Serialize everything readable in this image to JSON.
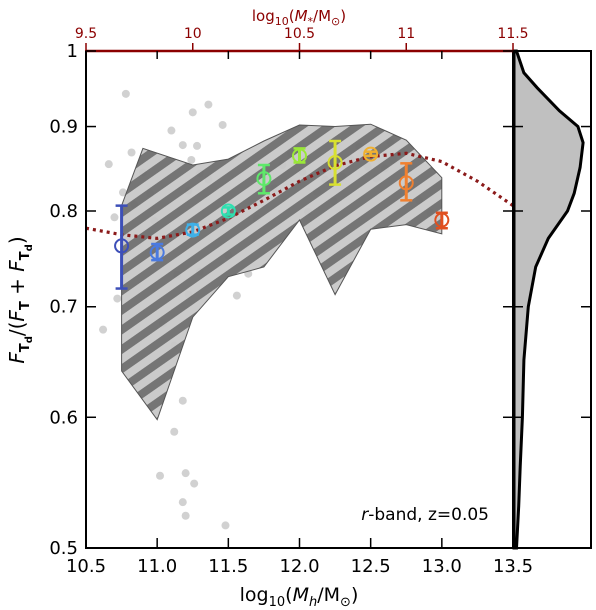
{
  "chart_data": {
    "type": "scatter",
    "x_bottom": {
      "label_pre": "log",
      "label_sub": "10",
      "label_mid": "(",
      "label_var": "M",
      "label_varsub": "h",
      "label_post": "/M",
      "label_sunsub": "⊙",
      "label_end": ")",
      "range": [
        10.5,
        13.5
      ],
      "ticks": [
        10.5,
        11.0,
        11.5,
        12.0,
        12.5,
        13.0,
        13.5
      ],
      "tick_labels": [
        "10.5",
        "11.0",
        "11.5",
        "12.0",
        "12.5",
        "13.0",
        "13.5"
      ]
    },
    "x_top": {
      "label_pre": "log",
      "label_sub": "10",
      "label_mid": "(",
      "label_var": "M",
      "label_varsub": "*",
      "label_post": "/M",
      "label_sunsub": "⊙",
      "label_end": ")",
      "range": [
        9.5,
        11.5
      ],
      "ticks": [
        9.5,
        10,
        10.5,
        11,
        11.5
      ],
      "tick_labels": [
        "9.5",
        "10",
        "10.5",
        "11",
        "11.5"
      ],
      "color": "#8b0000"
    },
    "y": {
      "label": "F_Td/(F_T + F_Td)",
      "range": [
        0.5,
        1.0
      ],
      "ticks": [
        0.5,
        0.6,
        0.7,
        0.8,
        0.9,
        1.0
      ],
      "tick_labels": [
        "0.5",
        "0.6",
        "0.7",
        "0.8",
        "0.9",
        "1"
      ],
      "scale": "log"
    },
    "annotation": {
      "band_italic": "r",
      "band_rest": "-band, z=0.05"
    },
    "binned_points": [
      {
        "x": 10.75,
        "y": 0.762,
        "yerr_lo": 0.718,
        "yerr_hi": 0.806,
        "color": "#3d4fb8"
      },
      {
        "x": 11.0,
        "y": 0.755,
        "yerr_lo": 0.747,
        "yerr_hi": 0.764,
        "color": "#4a7ae0"
      },
      {
        "x": 11.25,
        "y": 0.779,
        "yerr_lo": 0.774,
        "yerr_hi": 0.785,
        "color": "#3fb0e8"
      },
      {
        "x": 11.5,
        "y": 0.8,
        "yerr_lo": 0.796,
        "yerr_hi": 0.804,
        "color": "#2ee0b0"
      },
      {
        "x": 11.75,
        "y": 0.837,
        "yerr_lo": 0.82,
        "yerr_hi": 0.853,
        "color": "#5ee86a"
      },
      {
        "x": 12.0,
        "y": 0.864,
        "yerr_lo": 0.856,
        "yerr_hi": 0.873,
        "color": "#9ae838"
      },
      {
        "x": 12.25,
        "y": 0.856,
        "yerr_lo": 0.83,
        "yerr_hi": 0.882,
        "color": "#d8e030"
      },
      {
        "x": 12.5,
        "y": 0.866,
        "yerr_lo": 0.864,
        "yerr_hi": 0.869,
        "color": "#f0b030"
      },
      {
        "x": 12.75,
        "y": 0.832,
        "yerr_lo": 0.812,
        "yerr_hi": 0.855,
        "color": "#f08030"
      },
      {
        "x": 13.0,
        "y": 0.79,
        "yerr_lo": 0.781,
        "yerr_hi": 0.798,
        "color": "#e05020"
      }
    ],
    "shaded_region": {
      "upper": [
        [
          10.75,
          0.806
        ],
        [
          10.9,
          0.873
        ],
        [
          11.25,
          0.853
        ],
        [
          11.5,
          0.86
        ],
        [
          11.75,
          0.882
        ],
        [
          12.0,
          0.902
        ],
        [
          12.25,
          0.9
        ],
        [
          12.5,
          0.903
        ],
        [
          12.75,
          0.883
        ],
        [
          13.0,
          0.838
        ]
      ],
      "lower": [
        [
          13.0,
          0.775
        ],
        [
          12.75,
          0.785
        ],
        [
          12.5,
          0.78
        ],
        [
          12.25,
          0.712
        ],
        [
          12.0,
          0.79
        ],
        [
          11.75,
          0.74
        ],
        [
          11.5,
          0.73
        ],
        [
          11.25,
          0.69
        ],
        [
          11.0,
          0.598
        ],
        [
          10.75,
          0.64
        ]
      ]
    },
    "fit_line": {
      "color": "#8b1a1a",
      "points": [
        [
          10.5,
          0.781
        ],
        [
          10.75,
          0.774
        ],
        [
          11.0,
          0.77
        ],
        [
          11.25,
          0.777
        ],
        [
          11.5,
          0.792
        ],
        [
          11.75,
          0.812
        ],
        [
          12.0,
          0.834
        ],
        [
          12.25,
          0.852
        ],
        [
          12.5,
          0.863
        ],
        [
          12.75,
          0.867
        ],
        [
          13.0,
          0.857
        ],
        [
          13.25,
          0.834
        ],
        [
          13.5,
          0.806
        ]
      ]
    },
    "background_points": [
      [
        10.78,
        0.942
      ],
      [
        10.82,
        0.868
      ],
      [
        10.66,
        0.854
      ],
      [
        10.9,
        0.844
      ],
      [
        10.76,
        0.821
      ],
      [
        10.95,
        0.82
      ],
      [
        10.84,
        0.807
      ],
      [
        10.7,
        0.793
      ],
      [
        10.98,
        0.789
      ],
      [
        10.62,
        0.678
      ],
      [
        10.72,
        0.708
      ],
      [
        11.04,
        0.684
      ],
      [
        11.1,
        0.895
      ],
      [
        11.18,
        0.877
      ],
      [
        11.24,
        0.859
      ],
      [
        11.28,
        0.876
      ],
      [
        11.3,
        0.843
      ],
      [
        11.22,
        0.823
      ],
      [
        11.36,
        0.836
      ],
      [
        11.3,
        0.735
      ],
      [
        11.22,
        0.712
      ],
      [
        11.14,
        0.732
      ],
      [
        11.12,
        0.663
      ],
      [
        11.18,
        0.614
      ],
      [
        11.12,
        0.588
      ],
      [
        11.02,
        0.553
      ],
      [
        11.2,
        0.555
      ],
      [
        11.26,
        0.547
      ],
      [
        11.18,
        0.533
      ],
      [
        11.2,
        0.523
      ],
      [
        11.48,
        0.516
      ],
      [
        11.5,
        0.752
      ],
      [
        11.56,
        0.711
      ],
      [
        11.64,
        0.733
      ],
      [
        11.7,
        0.792
      ],
      [
        11.76,
        0.84
      ],
      [
        11.82,
        0.826
      ],
      [
        11.88,
        0.853
      ],
      [
        11.94,
        0.867
      ],
      [
        12.02,
        0.845
      ],
      [
        12.06,
        0.799
      ],
      [
        12.12,
        0.822
      ],
      [
        12.18,
        0.836
      ],
      [
        12.24,
        0.811
      ],
      [
        12.3,
        0.839
      ],
      [
        12.36,
        0.86
      ],
      [
        12.42,
        0.875
      ],
      [
        12.48,
        0.851
      ],
      [
        12.54,
        0.837
      ],
      [
        12.6,
        0.849
      ],
      [
        12.66,
        0.859
      ],
      [
        12.72,
        0.869
      ],
      [
        12.78,
        0.829
      ],
      [
        12.84,
        0.812
      ],
      [
        12.92,
        0.798
      ],
      [
        12.64,
        0.88
      ],
      [
        11.25,
        0.918
      ],
      [
        11.36,
        0.928
      ],
      [
        11.46,
        0.902
      ]
    ],
    "side_density": {
      "label": "",
      "y_samples": [
        0.5,
        0.53,
        0.56,
        0.6,
        0.65,
        0.7,
        0.74,
        0.77,
        0.8,
        0.82,
        0.85,
        0.88,
        0.9,
        0.92,
        0.95,
        0.97,
        1.0
      ],
      "density": [
        0.02,
        0.05,
        0.07,
        0.1,
        0.12,
        0.18,
        0.28,
        0.45,
        0.71,
        0.8,
        0.88,
        0.92,
        0.85,
        0.6,
        0.3,
        0.12,
        0.02
      ]
    }
  }
}
